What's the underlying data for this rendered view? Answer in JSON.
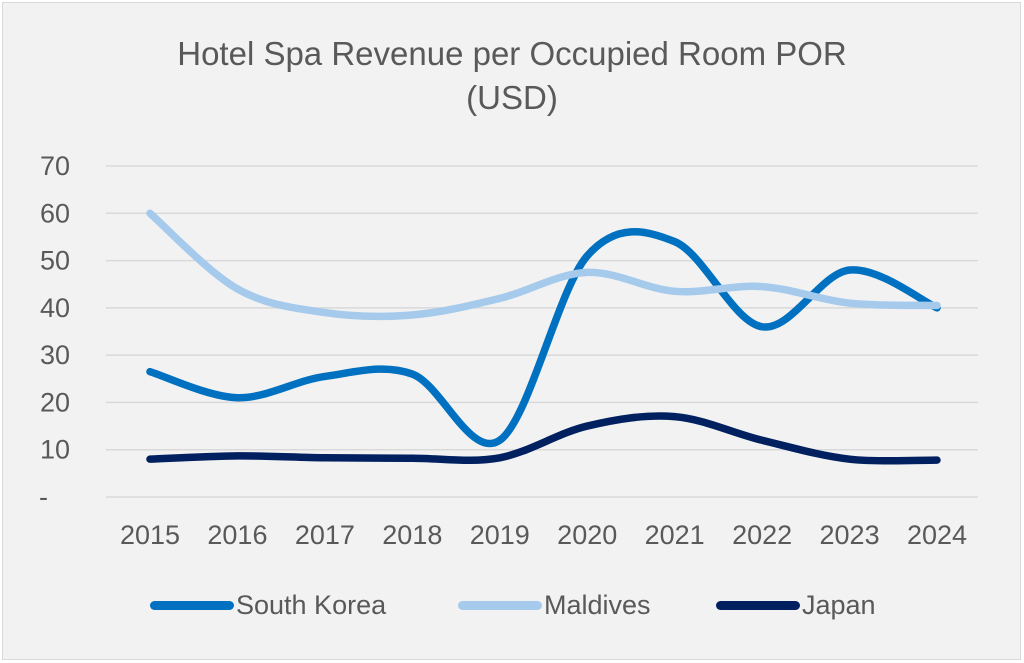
{
  "chart_data": {
    "type": "line",
    "title": "Hotel Spa Revenue per Occupied Room POR",
    "subtitle": "(USD)",
    "xlabel": "",
    "ylabel": "",
    "categories": [
      "2015",
      "2016",
      "2017",
      "2018",
      "2019",
      "2020",
      "2021",
      "2022",
      "2023",
      "2024"
    ],
    "ylim": [
      0,
      70
    ],
    "yticks": [
      0,
      10,
      20,
      30,
      40,
      50,
      60,
      70
    ],
    "ytick_labels": [
      "-",
      "10",
      "20",
      "30",
      "40",
      "50",
      "60",
      "70"
    ],
    "grid": true,
    "smooth": true,
    "legend_position": "bottom",
    "series": [
      {
        "name": "South Korea",
        "color": "#0070c0",
        "values": [
          26.5,
          21,
          25.5,
          26,
          12,
          51,
          54,
          36,
          48,
          40
        ]
      },
      {
        "name": "Maldives",
        "color": "#a6caec",
        "values": [
          60,
          44,
          39,
          38.5,
          42,
          47.5,
          43.5,
          44.5,
          41,
          40.5
        ]
      },
      {
        "name": "Japan",
        "color": "#002060",
        "values": [
          8,
          8.7,
          8.3,
          8.2,
          8.3,
          15,
          17,
          12,
          8,
          7.8
        ]
      }
    ]
  }
}
